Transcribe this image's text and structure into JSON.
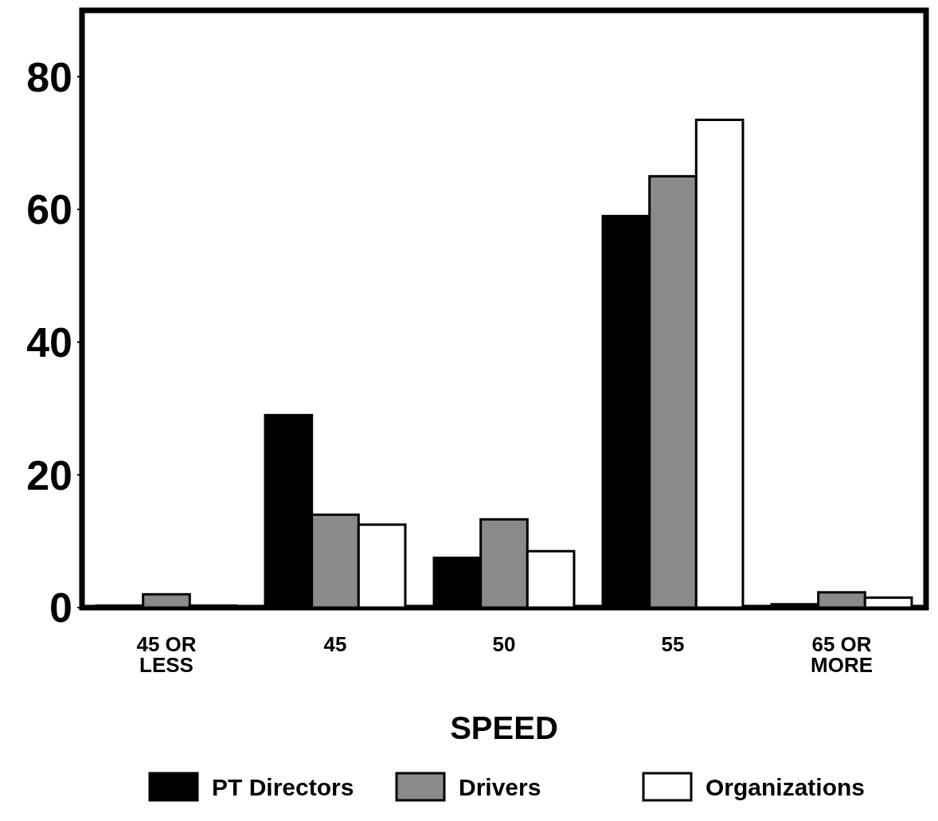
{
  "chart_data": {
    "type": "bar",
    "xlabel": "SPEED",
    "categories": [
      "45 OR\nLESS",
      "45",
      "50",
      "55",
      "65 OR\nMORE"
    ],
    "series": [
      {
        "name": "PT Directors",
        "color": "#000000",
        "values": [
          0.3,
          29,
          7.5,
          59,
          0.5
        ]
      },
      {
        "name": "Drivers",
        "color": "#8a8a8a",
        "values": [
          2,
          14,
          13.3,
          65,
          2.3
        ]
      },
      {
        "name": "Organizations",
        "color": "#ffffff",
        "values": [
          0.3,
          12.5,
          8.5,
          73.5,
          1.5
        ]
      }
    ],
    "ylim": [
      0,
      90
    ],
    "yticks": [
      0,
      20,
      40,
      60,
      80
    ],
    "grid": false,
    "legend": "bottom"
  }
}
